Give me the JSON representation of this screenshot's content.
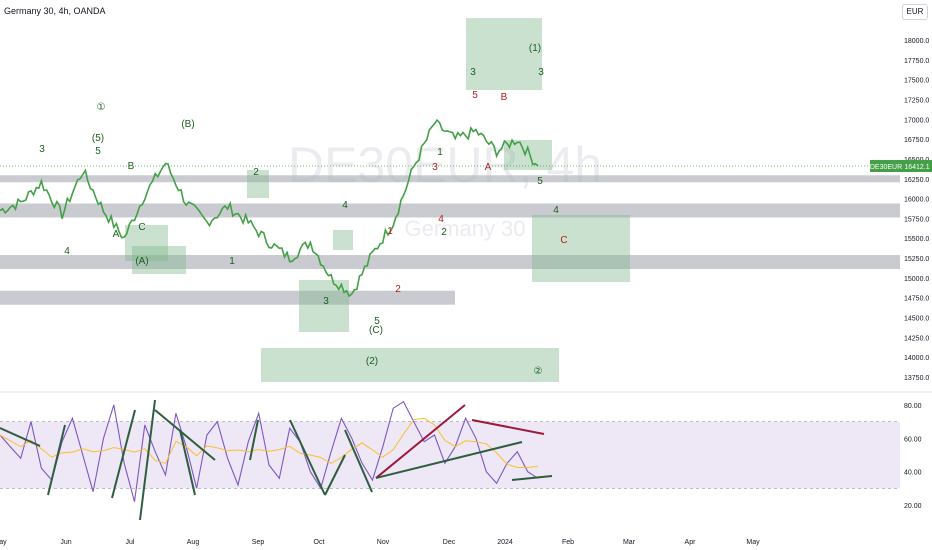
{
  "header": {
    "symbol_line": "Germany 30, 4h, OANDA"
  },
  "currency_button": "EUR",
  "watermark": {
    "line1": "DE30EUR, 4h",
    "line2": "Germany 30"
  },
  "price_tag": {
    "symbol": "DE30EUR",
    "value": "16412.1"
  },
  "colors": {
    "candle": "#43a047",
    "support_band": "#b2b5be",
    "wave_box": "#81b88d",
    "label_green": "#1b5e20",
    "label_red": "#b71c1c",
    "rsi_band": "#ede7f6",
    "rsi_line": "#7e57c2",
    "rsi_ma": "#fbc02d",
    "trend_dark": "#2e5e3e",
    "trend_red": "#9c1b3b"
  },
  "chart_data": [
    {
      "type": "line",
      "title": "Germany 30, 4h, OANDA",
      "xlabel": "",
      "ylabel": "",
      "x_ticks": [
        "May",
        "Jun",
        "Jul",
        "Aug",
        "Sep",
        "Oct",
        "Nov",
        "Dec",
        "2024",
        "Feb",
        "Mar",
        "Apr",
        "May"
      ],
      "y_ticks": [
        13750,
        14000,
        14250,
        14500,
        14750,
        15000,
        15250,
        15500,
        15750,
        16000,
        16250,
        16500,
        16750,
        17000,
        17250,
        17500,
        17750,
        18000
      ],
      "y_tick_labels": [
        "13750.0",
        "14000.0",
        "14250.0",
        "14500.0",
        "14750.0",
        "15000.0",
        "15250.0",
        "15500.0",
        "15750.0",
        "16000.0",
        "16250.0",
        "16500.0",
        "16750.0",
        "17000.0",
        "17250.0",
        "17500.0",
        "17750.0",
        "18000.0"
      ],
      "ylim": [
        13650,
        18300
      ],
      "series": [
        {
          "x": [
            "May-01",
            "May-15",
            "May-29",
            "Jun-05",
            "Jun-16",
            "Jun-28",
            "Jul-07",
            "Jul-17",
            "Jul-31",
            "Aug-09",
            "Aug-18",
            "Aug-28",
            "Sep-08",
            "Sep-20",
            "Oct-03",
            "Oct-12",
            "Oct-22",
            "Oct-30",
            "Nov-09",
            "Nov-20",
            "Dec-01",
            "Dec-11",
            "Dec-20",
            "Dec-29",
            "Jan-05",
            "Jan-12",
            "Jan-18"
          ],
          "values": [
            15850,
            15950,
            16200,
            15800,
            16350,
            15850,
            15500,
            16050,
            16450,
            15950,
            15700,
            15900,
            15700,
            15450,
            15250,
            15450,
            15000,
            14800,
            15300,
            15700,
            16400,
            16950,
            16750,
            16850,
            16600,
            16750,
            16412
          ]
        }
      ],
      "last_value": 16412.1,
      "levels": [
        16250,
        15850,
        15200,
        14750
      ],
      "wave_labels": [
        {
          "text": "3",
          "color": "green"
        },
        {
          "text": "(5)",
          "color": "green"
        },
        {
          "text": "5",
          "color": "green"
        },
        {
          "text": "①",
          "color": "green"
        },
        {
          "text": "B",
          "color": "green"
        },
        {
          "text": "(B)",
          "color": "green"
        },
        {
          "text": "A",
          "color": "green"
        },
        {
          "text": "C",
          "color": "green"
        },
        {
          "text": "(A)",
          "color": "green"
        },
        {
          "text": "4",
          "color": "green"
        },
        {
          "text": "1",
          "color": "green"
        },
        {
          "text": "2",
          "color": "green"
        },
        {
          "text": "4",
          "color": "green"
        },
        {
          "text": "3",
          "color": "green"
        },
        {
          "text": "5",
          "color": "green"
        },
        {
          "text": "(C)",
          "color": "green"
        },
        {
          "text": "1",
          "color": "red"
        },
        {
          "text": "2",
          "color": "red"
        },
        {
          "text": "3",
          "color": "red"
        },
        {
          "text": "4",
          "color": "red"
        },
        {
          "text": "1",
          "color": "green"
        },
        {
          "text": "2",
          "color": "green"
        },
        {
          "text": "3",
          "color": "green"
        },
        {
          "text": "5",
          "color": "red"
        },
        {
          "text": "B",
          "color": "red"
        },
        {
          "text": "A",
          "color": "red"
        },
        {
          "text": "(1)",
          "color": "green"
        },
        {
          "text": "3",
          "color": "green"
        },
        {
          "text": "5",
          "color": "green"
        },
        {
          "text": "4",
          "color": "green"
        },
        {
          "text": "C",
          "color": "red"
        },
        {
          "text": "(2)",
          "color": "green"
        },
        {
          "text": "②",
          "color": "green"
        },
        {
          "text": "5",
          "color": "green"
        }
      ]
    },
    {
      "type": "line",
      "title": "",
      "xlabel": "",
      "ylabel": "",
      "y_ticks": [
        20,
        40,
        60,
        80
      ],
      "y_tick_labels": [
        "20.00",
        "40.00",
        "60.00",
        "80.00"
      ],
      "ylim": [
        13,
        87
      ],
      "band": [
        30,
        70
      ],
      "series": [
        {
          "values": [
            62,
            55,
            48,
            70,
            42,
            35,
            58,
            72,
            50,
            28,
            60,
            80,
            45,
            22,
            68,
            52,
            38,
            75,
            55,
            30,
            62,
            70,
            48,
            32,
            58,
            75,
            44,
            36,
            66,
            58,
            40,
            30,
            52,
            72,
            60,
            45,
            35,
            55,
            78,
            82,
            70,
            58,
            62,
            45,
            55,
            72,
            60,
            40,
            33,
            45,
            52,
            40,
            36
          ]
        }
      ]
    }
  ]
}
